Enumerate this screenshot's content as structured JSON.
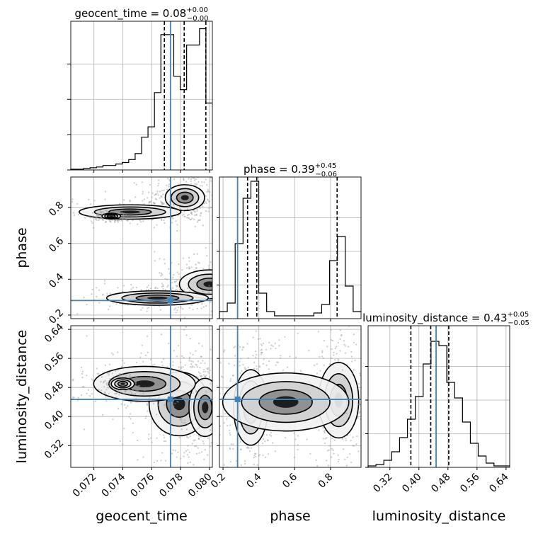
{
  "chart_data": {
    "type": "corner",
    "truth_color": "#4682b4",
    "parameters": [
      {
        "name": "geocent_time",
        "label": "geocent_time",
        "title_prefix": "geocent_time = 0.08",
        "title_sup": "+0.00",
        "title_sub": "−0.00",
        "range": [
          0.0704,
          0.0802
        ],
        "ticks": [
          0.072,
          0.074,
          0.076,
          0.078,
          0.08
        ],
        "tick_labels": [
          "0.072",
          "0.074",
          "0.076",
          "0.078",
          "0.080"
        ],
        "truth": 0.0773,
        "quantile_lines": [
          0.07688,
          0.07825,
          0.07975
        ],
        "hist_top": 0.95,
        "hist_bins": [
          0.005,
          0.005,
          0.01,
          0.015,
          0.02,
          0.03,
          0.03,
          0.04,
          0.05,
          0.07,
          0.11,
          0.22,
          0.29,
          0.52,
          0.91,
          0.91,
          0.63,
          0.54,
          0.84,
          0.84,
          0.95,
          0.45
        ]
      },
      {
        "name": "phase",
        "label": "phase",
        "title_prefix": "phase = 0.39",
        "title_sup": "+0.45",
        "title_sub": "−0.06",
        "range": [
          0.18,
          0.97
        ],
        "ticks": [
          0.2,
          0.4,
          0.6,
          0.8
        ],
        "tick_labels": [
          "0.2",
          "0.4",
          "0.6",
          "0.8"
        ],
        "truth": 0.2813,
        "quantile_lines": [
          0.3369,
          0.3883,
          0.8366
        ],
        "hist_top": 1.0,
        "hist_bins": [
          0.05,
          0.11,
          0.53,
          0.85,
          0.97,
          0.18,
          0.05,
          0.02,
          0.02,
          0.02,
          0.02,
          0.02,
          0.04,
          0.1,
          0.41,
          0.58,
          0.23,
          0.05
        ]
      },
      {
        "name": "luminosity_distance",
        "label": "luminosity_distance",
        "title_prefix": "luminosity_distance = 0.43",
        "title_sup": "+0.05",
        "title_sub": "−0.05",
        "range": [
          0.26,
          0.65
        ],
        "ticks": [
          0.32,
          0.4,
          0.48,
          0.56,
          0.64
        ],
        "tick_labels": [
          "0.32",
          "0.40",
          "0.48",
          "0.56",
          "0.64"
        ],
        "truth": 0.4473,
        "quantile_lines": [
          0.3778,
          0.4325,
          0.4822
        ],
        "hist_top": 1.0,
        "hist_bins": [
          0.01,
          0.02,
          0.05,
          0.11,
          0.21,
          0.34,
          0.5,
          0.73,
          0.89,
          0.86,
          0.6,
          0.49,
          0.32,
          0.17,
          0.08,
          0.03,
          0.01,
          0.01
        ]
      }
    ],
    "contour_panels": [
      {
        "x": "geocent_time",
        "y": "phase",
        "clusters": [
          {
            "cx": 0.0783,
            "cy": 0.855,
            "sx": 0.00085,
            "sy": 0.045
          },
          {
            "cx": 0.08,
            "cy": 0.372,
            "sx": 0.0013,
            "sy": 0.05
          },
          {
            "cx": 0.0764,
            "cy": 0.295,
            "sx": 0.0022,
            "sy": 0.025
          },
          {
            "cx": 0.0745,
            "cy": 0.775,
            "sx": 0.0022,
            "sy": 0.025
          },
          {
            "cx": 0.0732,
            "cy": 0.752,
            "sx": 0.0004,
            "sy": 0.01
          }
        ]
      },
      {
        "x": "geocent_time",
        "y": "luminosity_distance",
        "clusters": [
          {
            "cx": 0.0779,
            "cy": 0.435,
            "sx": 0.0013,
            "sy": 0.055
          },
          {
            "cx": 0.0797,
            "cy": 0.425,
            "sx": 0.0007,
            "sy": 0.05
          },
          {
            "cx": 0.0755,
            "cy": 0.49,
            "sx": 0.0022,
            "sy": 0.03
          },
          {
            "cx": 0.074,
            "cy": 0.49,
            "sx": 0.0005,
            "sy": 0.01
          }
        ]
      },
      {
        "x": "phase",
        "y": "luminosity_distance",
        "clusters": [
          {
            "cx": 0.355,
            "cy": 0.425,
            "sx": 0.06,
            "sy": 0.065
          },
          {
            "cx": 0.845,
            "cy": 0.445,
            "sx": 0.07,
            "sy": 0.065
          },
          {
            "cx": 0.55,
            "cy": 0.44,
            "sx": 0.22,
            "sy": 0.05
          }
        ]
      }
    ]
  }
}
